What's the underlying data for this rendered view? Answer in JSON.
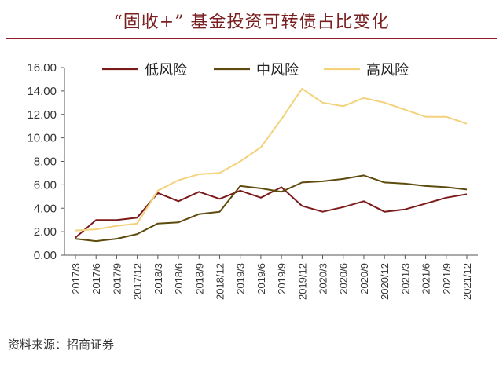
{
  "title": "“固收+” 基金投资可转债占比变化",
  "source": "资料来源：招商证券",
  "colors": {
    "low": "#7b1a1a",
    "mid": "#5e4a0c",
    "high": "#f2d27a",
    "axis": "#555555",
    "rule": "#8c1f2a"
  },
  "chart_data": {
    "type": "line",
    "title": "“固收+” 基金投资可转债占比变化",
    "xlabel": "",
    "ylabel": "",
    "ylim": [
      0,
      16
    ],
    "yticks": [
      "0.00",
      "2.00",
      "4.00",
      "6.00",
      "8.00",
      "10.00",
      "12.00",
      "14.00",
      "16.00"
    ],
    "grid": false,
    "legend": "top",
    "x": [
      "2017/3",
      "2017/6",
      "2017/9",
      "2017/12",
      "2018/3",
      "2018/6",
      "2018/9",
      "2018/12",
      "2019/3",
      "2019/6",
      "2019/9",
      "2019/12",
      "2020/3",
      "2020/6",
      "2020/9",
      "2020/12",
      "2021/3",
      "2021/6",
      "2021/9",
      "2021/12"
    ],
    "series": [
      {
        "name": "低风险",
        "color": "#7b1a1a",
        "values": [
          1.5,
          3.0,
          3.0,
          3.2,
          5.3,
          4.6,
          5.4,
          4.8,
          5.5,
          4.9,
          5.8,
          4.2,
          3.7,
          4.1,
          4.6,
          3.7,
          3.9,
          4.4,
          4.9,
          5.2
        ]
      },
      {
        "name": "中风险",
        "color": "#5e4a0c",
        "values": [
          1.4,
          1.2,
          1.4,
          1.8,
          2.7,
          2.8,
          3.5,
          3.7,
          5.9,
          5.7,
          5.4,
          6.2,
          6.3,
          6.5,
          6.8,
          6.2,
          6.1,
          5.9,
          5.8,
          5.6
        ]
      },
      {
        "name": "高风险",
        "color": "#f2d27a",
        "values": [
          2.1,
          2.2,
          2.5,
          2.7,
          5.5,
          6.4,
          6.9,
          7.0,
          8.0,
          9.2,
          11.6,
          14.2,
          13.0,
          12.7,
          13.4,
          13.0,
          12.4,
          11.8,
          11.8,
          11.2
        ]
      }
    ]
  }
}
